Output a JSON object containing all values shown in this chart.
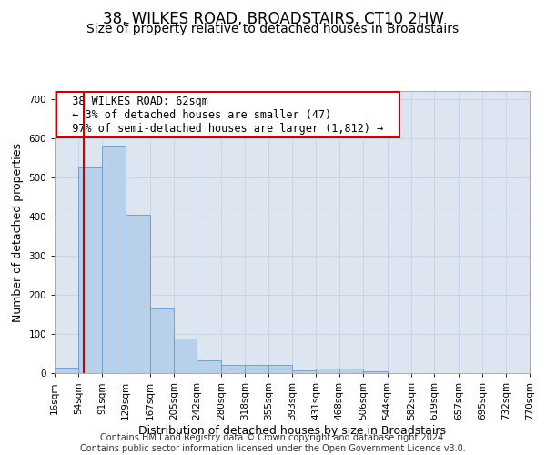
{
  "title": "38, WILKES ROAD, BROADSTAIRS, CT10 2HW",
  "subtitle": "Size of property relative to detached houses in Broadstairs",
  "xlabel": "Distribution of detached houses by size in Broadstairs",
  "ylabel": "Number of detached properties",
  "bar_edges": [
    16,
    54,
    91,
    129,
    167,
    205,
    242,
    280,
    318,
    355,
    393,
    431,
    468,
    506,
    544,
    582,
    619,
    657,
    695,
    732,
    770
  ],
  "bar_heights": [
    13,
    525,
    580,
    405,
    165,
    88,
    32,
    20,
    22,
    21,
    8,
    12,
    12,
    5,
    0,
    0,
    0,
    0,
    0,
    0
  ],
  "bar_color": "#b8d0ea",
  "bar_edgecolor": "#6699cc",
  "property_size": 62,
  "vline_color": "#cc0000",
  "annotation_text": "  38 WILKES ROAD: 62sqm  \n  ← 3% of detached houses are smaller (47)  \n  97% of semi-detached houses are larger (1,812) →  ",
  "annotation_box_color": "#ffffff",
  "annotation_box_edgecolor": "#cc0000",
  "ylim": [
    0,
    720
  ],
  "yticks": [
    0,
    100,
    200,
    300,
    400,
    500,
    600,
    700
  ],
  "grid_color": "#c8d4e8",
  "background_color": "#dde6f0",
  "footer_line1": "Contains HM Land Registry data © Crown copyright and database right 2024.",
  "footer_line2": "Contains public sector information licensed under the Open Government Licence v3.0.",
  "title_fontsize": 12,
  "subtitle_fontsize": 10,
  "axis_label_fontsize": 9,
  "tick_fontsize": 7.5,
  "annotation_fontsize": 8.5,
  "footer_fontsize": 7
}
